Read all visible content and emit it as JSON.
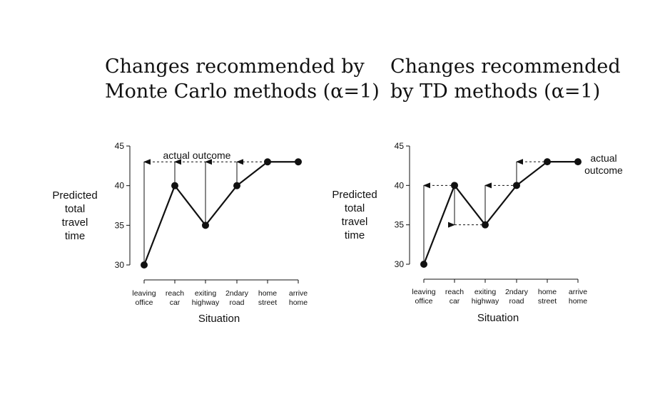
{
  "chart_data": [
    {
      "type": "line",
      "title": [
        "Changes recommended by",
        "Monte Carlo methods (α=1)"
      ],
      "ylabel": [
        "Predicted",
        "total",
        "travel",
        "time"
      ],
      "xlabel": "Situation",
      "categories": [
        [
          "leaving",
          "office"
        ],
        [
          "reach",
          "car"
        ],
        [
          "exiting",
          "highway"
        ],
        [
          "2ndary",
          "road"
        ],
        [
          "home",
          "street"
        ],
        [
          "arrive",
          "home"
        ]
      ],
      "yticks": [
        "30",
        "35",
        "40",
        "45"
      ],
      "ylim": [
        30,
        45
      ],
      "values": [
        30,
        40,
        35,
        40,
        43,
        43
      ],
      "actual_outcome": 43,
      "annotation": [
        "actual outcome"
      ],
      "arrows": [
        {
          "index": 0,
          "from": 30,
          "to": 43
        },
        {
          "index": 1,
          "from": 40,
          "to": 43
        },
        {
          "index": 2,
          "from": 35,
          "to": 43
        },
        {
          "index": 3,
          "from": 40,
          "to": 43
        }
      ],
      "dashed": [
        {
          "y": 43,
          "from_index": 0,
          "to_index": 5
        }
      ]
    },
    {
      "type": "line",
      "title": [
        "Changes recommended",
        "by TD methods (α=1)"
      ],
      "ylabel": [
        "Predicted",
        "total",
        "travel",
        "time"
      ],
      "xlabel": "Situation",
      "categories": [
        [
          "leaving",
          "office"
        ],
        [
          "reach",
          "car"
        ],
        [
          "exiting",
          "highway"
        ],
        [
          "2ndary",
          "road"
        ],
        [
          "home",
          "street"
        ],
        [
          "arrive",
          "home"
        ]
      ],
      "yticks": [
        "30",
        "35",
        "40",
        "45"
      ],
      "ylim": [
        30,
        45
      ],
      "values": [
        30,
        40,
        35,
        40,
        43,
        43
      ],
      "actual_outcome": 43,
      "annotation": [
        "actual",
        "outcome"
      ],
      "arrows": [
        {
          "index": 0,
          "from": 30,
          "to": 40
        },
        {
          "index": 1,
          "from": 40,
          "to": 35
        },
        {
          "index": 2,
          "from": 35,
          "to": 40
        },
        {
          "index": 3,
          "from": 40,
          "to": 43
        }
      ],
      "dashed": [
        {
          "y": 40,
          "from_index": 0,
          "to_index": 1
        },
        {
          "y": 35,
          "from_index": 1,
          "to_index": 2
        },
        {
          "y": 40,
          "from_index": 2,
          "to_index": 3
        },
        {
          "y": 43,
          "from_index": 3,
          "to_index": 4
        }
      ]
    }
  ]
}
